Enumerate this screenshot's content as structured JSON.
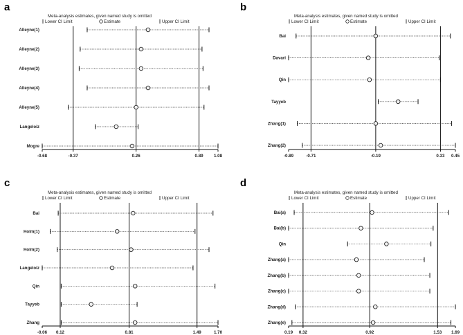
{
  "chart_data": [
    {
      "type": "forest",
      "panel": "a",
      "title": "Meta-analysis estimates, given named study is omitted",
      "legend": [
        "Lower CI Limit",
        "Estimate",
        "Upper CI Limit"
      ],
      "ticks": [
        "-0.68",
        "-0.37",
        "0.26",
        "0.89",
        "1.08"
      ],
      "xlim": [
        -0.68,
        1.08
      ],
      "reference_lines": [
        -0.37,
        0.26,
        0.89
      ],
      "studies": [
        {
          "name": "Alleyne(1)",
          "estimate": 0.38,
          "lower": -0.23,
          "upper": 0.99
        },
        {
          "name": "Alleyne(2)",
          "estimate": 0.31,
          "lower": -0.3,
          "upper": 0.92
        },
        {
          "name": "Alleyne(3)",
          "estimate": 0.31,
          "lower": -0.31,
          "upper": 0.93
        },
        {
          "name": "Alleyne(4)",
          "estimate": 0.38,
          "lower": -0.23,
          "upper": 0.99
        },
        {
          "name": "Alleyne(5)",
          "estimate": 0.26,
          "lower": -0.42,
          "upper": 0.94
        },
        {
          "name": "Langeloiz",
          "estimate": 0.06,
          "lower": -0.15,
          "upper": 0.28
        },
        {
          "name": "Mogre",
          "estimate": 0.22,
          "lower": -0.68,
          "upper": 1.08
        }
      ]
    },
    {
      "type": "forest",
      "panel": "b",
      "title": "Meta-analysis estimates, given named study is omitted",
      "legend": [
        "Lower CI Limit",
        "Estimate",
        "Upper CI Limit"
      ],
      "ticks": [
        "-0.89",
        "-0.71",
        "-0.19",
        "0.33",
        "0.45"
      ],
      "xlim": [
        -0.89,
        0.45
      ],
      "reference_lines": [
        -0.71,
        -0.19,
        0.33
      ],
      "studies": [
        {
          "name": "Bai",
          "estimate": -0.19,
          "lower": -0.83,
          "upper": 0.41
        },
        {
          "name": "Davari",
          "estimate": -0.25,
          "lower": -0.89,
          "upper": 0.32
        },
        {
          "name": "Qin",
          "estimate": -0.24,
          "lower": -0.89,
          "upper": 0.33
        },
        {
          "name": "Tayyeb",
          "estimate": -0.01,
          "lower": -0.17,
          "upper": 0.15
        },
        {
          "name": "Zhang(1)",
          "estimate": -0.19,
          "lower": -0.82,
          "upper": 0.42
        },
        {
          "name": "Zhang(2)",
          "estimate": -0.15,
          "lower": -0.78,
          "upper": 0.45
        }
      ]
    },
    {
      "type": "forest",
      "panel": "c",
      "title": "Meta-analysis estimates, given named study is omitted",
      "legend": [
        "Lower CI Limit",
        "Estimate",
        "Upper CI Limit"
      ],
      "ticks": [
        "-0.06",
        "0.12",
        "0.81",
        "1.49",
        "1.70"
      ],
      "xlim": [
        -0.06,
        1.7
      ],
      "reference_lines": [
        0.12,
        0.81,
        1.49
      ],
      "studies": [
        {
          "name": "Bai",
          "estimate": 0.85,
          "lower": 0.1,
          "upper": 1.65
        },
        {
          "name": "Holm(1)",
          "estimate": 0.69,
          "lower": 0.02,
          "upper": 1.47
        },
        {
          "name": "Holm(2)",
          "estimate": 0.83,
          "lower": 0.09,
          "upper": 1.61
        },
        {
          "name": "Langeloiz",
          "estimate": 0.64,
          "lower": -0.06,
          "upper": 1.45
        },
        {
          "name": "Qin",
          "estimate": 0.87,
          "lower": 0.13,
          "upper": 1.67
        },
        {
          "name": "Tayyeb",
          "estimate": 0.43,
          "lower": 0.13,
          "upper": 0.89
        },
        {
          "name": "Zhang",
          "estimate": 0.87,
          "lower": 0.13,
          "upper": 1.7
        }
      ]
    },
    {
      "type": "forest",
      "panel": "d",
      "title": "Meta-analysis estimates, given named study is omitted",
      "legend": [
        "Lower CI Limit",
        "Estimate",
        "Upper CI Limit"
      ],
      "ticks": [
        "0.19",
        "0.32",
        "0.92",
        "1.53",
        "1.69"
      ],
      "xlim": [
        0.19,
        1.69
      ],
      "reference_lines": [
        0.32,
        0.92,
        1.53
      ],
      "studies": [
        {
          "name": "Bai(a)",
          "estimate": 0.94,
          "lower": 0.24,
          "upper": 1.63
        },
        {
          "name": "Bai(b)",
          "estimate": 0.84,
          "lower": 0.19,
          "upper": 1.49
        },
        {
          "name": "Qin",
          "estimate": 1.07,
          "lower": 0.72,
          "upper": 1.47
        },
        {
          "name": "Zhang(a)",
          "estimate": 0.8,
          "lower": 0.19,
          "upper": 1.41
        },
        {
          "name": "Zhang(b)",
          "estimate": 0.82,
          "lower": 0.19,
          "upper": 1.46
        },
        {
          "name": "Zhang(c)",
          "estimate": 0.82,
          "lower": 0.19,
          "upper": 1.46
        },
        {
          "name": "Zhang(d)",
          "estimate": 0.97,
          "lower": 0.25,
          "upper": 1.69
        },
        {
          "name": "Zhang(e)",
          "estimate": 0.95,
          "lower": 0.22,
          "upper": 1.65
        }
      ]
    }
  ]
}
